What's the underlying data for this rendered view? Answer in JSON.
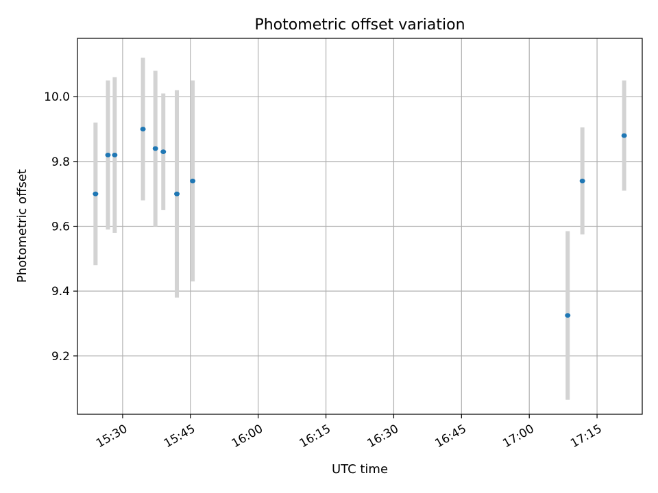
{
  "chart_data": {
    "type": "scatter",
    "title": "Photometric offset variation",
    "xlabel": "UTC time",
    "ylabel": "Photometric offset",
    "x_ticks": [
      "15:30",
      "15:45",
      "16:00",
      "16:15",
      "16:30",
      "16:45",
      "17:00",
      "17:15"
    ],
    "xlim": [
      "15:20:00",
      "17:25:00"
    ],
    "y_ticks": [
      "9.2",
      "9.4",
      "9.6",
      "9.8",
      "10.0"
    ],
    "ylim": [
      9.02,
      10.18
    ],
    "grid": true,
    "colors": {
      "points": "#1f77b4",
      "errorbars": "#d3d3d3",
      "grid": "#b0b0b0"
    },
    "series": [
      {
        "x": [
          "15:24:00",
          "15:26:45",
          "15:28:15",
          "15:34:30",
          "15:37:15",
          "15:39:00",
          "15:42:00",
          "15:45:30",
          "17:08:30",
          "17:11:45",
          "17:21:00"
        ],
        "y": [
          9.7,
          9.82,
          9.82,
          9.9,
          9.84,
          9.83,
          9.7,
          9.74,
          9.325,
          9.74,
          9.88
        ],
        "yerr": [
          0.22,
          0.23,
          0.24,
          0.22,
          0.24,
          0.18,
          0.32,
          0.31,
          0.26,
          0.165,
          0.17
        ]
      }
    ]
  }
}
